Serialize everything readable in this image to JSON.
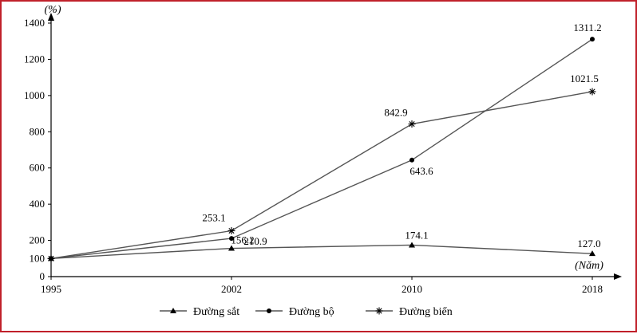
{
  "chart_data": {
    "type": "line",
    "ylabel": "(%)",
    "xlabel": "(Năm)",
    "x": [
      "1995",
      "2002",
      "2010",
      "2018"
    ],
    "ylim": [
      0,
      1400
    ],
    "yticks": [
      "0",
      "100",
      "200",
      "400",
      "600",
      "800",
      "1000",
      "1200",
      "1400"
    ],
    "series": [
      {
        "name": "Đường sắt",
        "marker": "triangle",
        "values": [
          100,
          156.2,
          174.1,
          127.0
        ],
        "labels": [
          "",
          "156.2",
          "174.1",
          "127.0"
        ]
      },
      {
        "name": "Đường bộ",
        "marker": "circle",
        "values": [
          100,
          210.9,
          643.6,
          1311.2
        ],
        "labels": [
          "",
          "210.9",
          "643.6",
          "1311.2"
        ]
      },
      {
        "name": "Đường biển",
        "marker": "asterisk",
        "values": [
          100,
          253.1,
          842.9,
          1021.5
        ],
        "labels": [
          "",
          "253.1",
          "842.9",
          "1021.5"
        ]
      }
    ],
    "line_color": "#555555",
    "legend_position": "bottom"
  }
}
